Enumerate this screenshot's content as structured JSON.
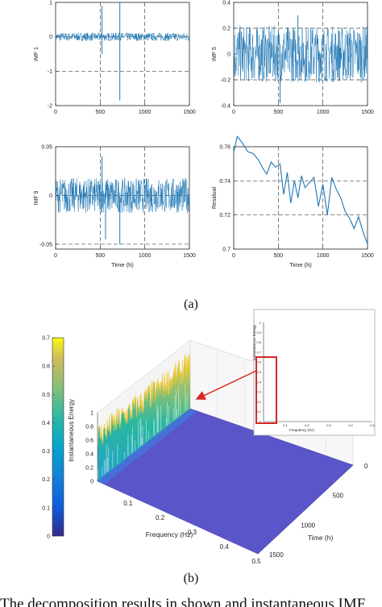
{
  "labels": {
    "sub_a": "(a)",
    "sub_b": "(b)",
    "body_text": "The decomposition results in shown and instantaneous IMF"
  },
  "colors": {
    "line": "#1f77b4",
    "axis": "#222222",
    "grid": "#444444",
    "surface": "#5a55c8",
    "arrow": "#d62728"
  },
  "chart_data": [
    {
      "type": "line",
      "panel": "IMF 1",
      "ylabel": "IMF 1",
      "xlabel": "",
      "xlim": [
        0,
        1500
      ],
      "ylim": [
        -2,
        1
      ],
      "xticks": [
        "0",
        "500",
        "1000",
        "1500"
      ],
      "yticks": [
        "-2",
        "-1",
        "0",
        "1"
      ],
      "gridlines_y": [
        -1,
        0
      ],
      "band": [
        -0.12,
        0.12
      ],
      "spikes": [
        {
          "x": 520,
          "y": 0.9
        },
        {
          "x": 520,
          "y": -0.5
        },
        {
          "x": 720,
          "y": 1.0
        },
        {
          "x": 720,
          "y": -1.85
        }
      ]
    },
    {
      "type": "line",
      "panel": "IMF 5",
      "ylabel": "IMF 5",
      "xlabel": "",
      "xlim": [
        0,
        1500
      ],
      "ylim": [
        -0.4,
        0.4
      ],
      "xticks": [
        "0",
        "500",
        "1000",
        "1500"
      ],
      "yticks": [
        "-0.4",
        "-0.2",
        "0",
        "0.2",
        "0.4"
      ],
      "gridlines_y": [
        -0.2,
        0.2
      ],
      "band": [
        -0.22,
        0.22
      ],
      "spikes": [
        {
          "x": 520,
          "y": -0.38
        },
        {
          "x": 720,
          "y": 0.3
        }
      ]
    },
    {
      "type": "line",
      "panel": "IMF 9",
      "ylabel": "IMF 9",
      "xlabel": "Time (h)",
      "xlim": [
        0,
        1500
      ],
      "ylim": [
        -0.055,
        0.05
      ],
      "xticks": [
        "0",
        "500",
        "1000",
        "1500"
      ],
      "yticks": [
        "-0.05",
        "0",
        "0.05"
      ],
      "gridlines_y": [
        -0.05,
        0
      ],
      "band": [
        -0.018,
        0.018
      ],
      "spikes": [
        {
          "x": 520,
          "y": 0.04
        },
        {
          "x": 560,
          "y": -0.045
        },
        {
          "x": 720,
          "y": -0.05
        }
      ]
    },
    {
      "type": "line",
      "panel": "Residual",
      "ylabel": "Residual",
      "xlabel": "Time (h)",
      "xlim": [
        0,
        1500
      ],
      "ylim": [
        0.7,
        0.76
      ],
      "xticks": [
        "0",
        "500",
        "1000",
        "1500"
      ],
      "yticks": [
        "0.7",
        "0.72",
        "0.74",
        "0.76"
      ],
      "gridlines_y": [
        0.72,
        0.74,
        0.76
      ],
      "x": [
        0,
        40,
        100,
        160,
        220,
        280,
        330,
        370,
        420,
        470,
        520,
        560,
        600,
        640,
        680,
        720,
        760,
        800,
        850,
        900,
        950,
        1000,
        1050,
        1100,
        1150,
        1200,
        1250,
        1300,
        1350,
        1400,
        1450,
        1500
      ],
      "y": [
        0.757,
        0.766,
        0.762,
        0.757,
        0.756,
        0.752,
        0.747,
        0.744,
        0.751,
        0.748,
        0.75,
        0.732,
        0.745,
        0.727,
        0.74,
        0.73,
        0.743,
        0.736,
        0.739,
        0.742,
        0.725,
        0.738,
        0.72,
        0.742,
        0.735,
        0.73,
        0.722,
        0.718,
        0.712,
        0.719,
        0.71,
        0.703
      ]
    },
    {
      "type": "surface",
      "panel": "Hilbert spectrum",
      "xlabel": "Frequency (Hz)",
      "ylabel": "Time (h)",
      "colorbar_label": "Instantaneous Energy",
      "colorbar_ticks": [
        "0.7",
        "0.6",
        "0.5",
        "0.4",
        "0.3",
        "0.2",
        "0.1",
        "0"
      ],
      "freq_ticks": [
        "0.1",
        "0.2",
        "0.3",
        "0.4",
        "0.5"
      ],
      "time_ticks": [
        "0",
        "500",
        "1000",
        "1500"
      ],
      "z_ticks": [
        "1",
        "0.8",
        "0.6",
        "0.4",
        "0.2",
        "0"
      ],
      "zlim": [
        0,
        1
      ],
      "energy_range": [
        0,
        0.7
      ]
    },
    {
      "type": "line",
      "panel": "inset",
      "xlabel": "Frequency (Hz)",
      "ylabel": "Instantaneous Energy",
      "xticks": [
        "0.1",
        "0.2",
        "0.3",
        "0.4",
        "0.5"
      ],
      "yticks": [
        "1",
        "0.9",
        "0.8",
        "0.7",
        "0.6",
        "0.5",
        "0.4",
        "0.3",
        "0.2",
        "0.1",
        "0"
      ],
      "xlim": [
        0,
        0.5
      ],
      "ylim": [
        0,
        1
      ]
    }
  ]
}
